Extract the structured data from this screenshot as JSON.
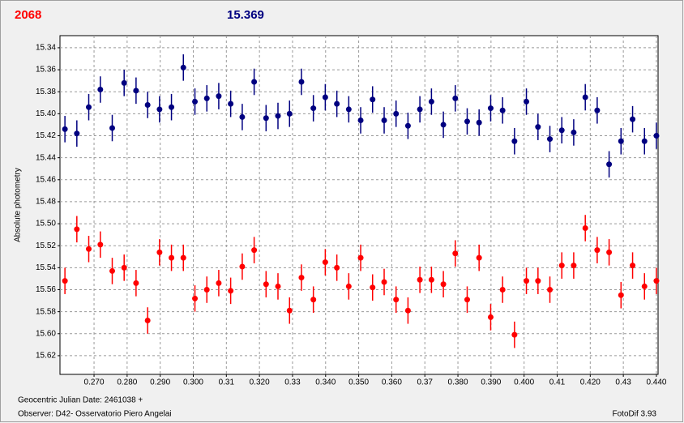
{
  "chart_data": {
    "type": "scatter",
    "header_left": "2068",
    "header_right": "15.369",
    "ylabel": "Absolute photometry",
    "footer_left_1": "Geocentric Julian Date: 2461038 +",
    "footer_left_2": "Observer: D42- Osservatorio Piero Angelai",
    "footer_right": "FotoDif 3.93",
    "xlim": [
      0.2597,
      0.4405
    ],
    "ylim": [
      15.329,
      15.637
    ],
    "y_inverted": true,
    "grid": true,
    "xticks": [
      {
        "value": 0.27,
        "label": "0.270"
      },
      {
        "value": 0.28,
        "label": "0.280"
      },
      {
        "value": 0.29,
        "label": "0.290"
      },
      {
        "value": 0.3,
        "label": "0.300"
      },
      0.31,
      {
        "value": 0.32,
        "label": "0.320"
      },
      0.33,
      {
        "value": 0.34,
        "label": "0.340"
      },
      {
        "value": 0.35,
        "label": "0.350"
      },
      {
        "value": 0.36,
        "label": "0.360"
      },
      0.37,
      {
        "value": 0.38,
        "label": "0.380"
      },
      {
        "value": 0.39,
        "label": "0.390"
      },
      {
        "value": 0.4,
        "label": "0.400"
      },
      0.41,
      {
        "value": 0.42,
        "label": "0.420"
      },
      0.43,
      {
        "value": 0.44,
        "label": "0.440"
      }
    ],
    "yticks": [
      15.34,
      15.36,
      15.38,
      {
        "value": 15.4,
        "label": "15.40"
      },
      15.42,
      15.44,
      15.46,
      15.48,
      {
        "value": 15.5,
        "label": "15.50"
      },
      15.52,
      15.54,
      15.56,
      15.58,
      {
        "value": 15.6,
        "label": "15.60"
      },
      15.62
    ],
    "x": [
      0.2612,
      0.2648,
      0.2684,
      0.2719,
      0.2755,
      0.2791,
      0.2827,
      0.2862,
      0.2898,
      0.2934,
      0.297,
      0.3005,
      0.3041,
      0.3077,
      0.3113,
      0.3148,
      0.3184,
      0.322,
      0.3256,
      0.3291,
      0.3327,
      0.3363,
      0.3399,
      0.3434,
      0.347,
      0.3506,
      0.3542,
      0.3577,
      0.3613,
      0.3649,
      0.3685,
      0.372,
      0.3756,
      0.3792,
      0.3828,
      0.3864,
      0.3899,
      0.3935,
      0.3971,
      0.4007,
      0.4042,
      0.4078,
      0.4114,
      0.415,
      0.4185,
      0.4221,
      0.4257,
      0.4293,
      0.4328,
      0.4364,
      0.44
    ],
    "series": [
      {
        "color": "#000080",
        "error": 0.012,
        "values": [
          15.414,
          15.418,
          15.394,
          15.378,
          15.413,
          15.372,
          15.379,
          15.392,
          15.396,
          15.394,
          15.358,
          15.389,
          15.386,
          15.384,
          15.391,
          15.403,
          15.371,
          15.404,
          15.402,
          15.4,
          15.371,
          15.395,
          15.385,
          15.391,
          15.396,
          15.406,
          15.387,
          15.406,
          15.4,
          15.411,
          15.396,
          15.389,
          15.41,
          15.386,
          15.407,
          15.408,
          15.395,
          15.397,
          15.425,
          15.389,
          15.412,
          15.423,
          15.415,
          15.417,
          15.385,
          15.397,
          15.446,
          15.425,
          15.405,
          15.425,
          15.42
        ]
      },
      {
        "color": "#ff0000",
        "error": 0.012,
        "values": [
          15.552,
          15.505,
          15.523,
          15.519,
          15.543,
          15.54,
          15.554,
          15.588,
          15.526,
          15.531,
          15.531,
          15.568,
          15.56,
          15.554,
          15.561,
          15.539,
          15.524,
          15.555,
          15.557,
          15.579,
          15.549,
          15.569,
          15.535,
          15.54,
          15.557,
          15.531,
          15.558,
          15.553,
          15.569,
          15.579,
          15.551,
          15.551,
          15.555,
          15.527,
          15.569,
          15.531,
          15.585,
          15.56,
          15.601,
          15.552,
          15.552,
          15.56,
          15.538,
          15.538,
          15.504,
          15.524,
          15.526,
          15.565,
          15.538,
          15.557,
          15.552
        ]
      }
    ]
  }
}
